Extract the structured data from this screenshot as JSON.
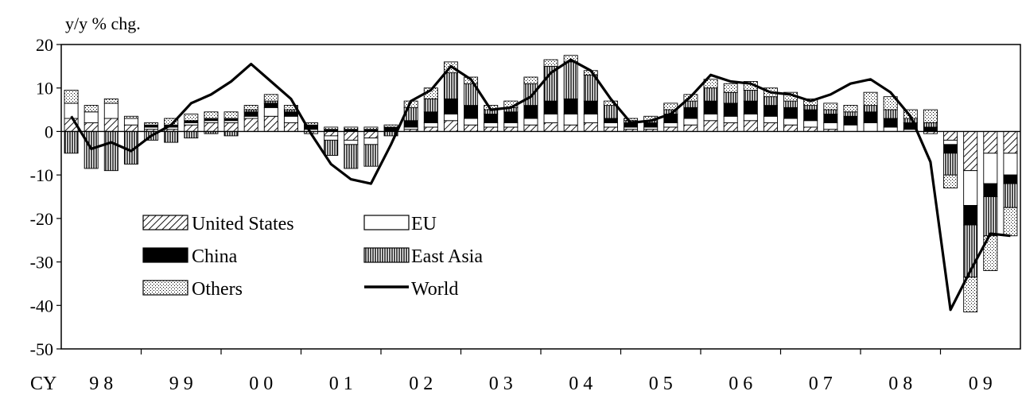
{
  "chart_data": {
    "type": "bar",
    "subtype": "stacked-bar-with-line",
    "ylabel": "y/y % chg.",
    "ylim": [
      -50,
      20
    ],
    "yticks": [
      20,
      10,
      0,
      -10,
      -20,
      -30,
      -40,
      -50
    ],
    "x_prefix": "CY",
    "year_labels": [
      "98",
      "99",
      "00",
      "01",
      "02",
      "03",
      "04",
      "05",
      "06",
      "07",
      "08",
      "09"
    ],
    "quarters_per_year": 4,
    "legend": [
      "United States",
      "EU",
      "China",
      "East Asia",
      "Others",
      "World"
    ],
    "series": [
      {
        "name": "United States",
        "values": [
          3,
          2,
          3,
          1.5,
          0.5,
          0.5,
          1.5,
          2,
          2,
          3,
          3.5,
          2,
          -0.5,
          -1,
          -2,
          -1.5,
          0,
          0.5,
          1,
          2.5,
          1.5,
          1,
          1,
          1.5,
          2,
          1.5,
          2,
          1,
          0.5,
          0.5,
          1,
          1.5,
          2.5,
          2,
          2.5,
          2,
          1.5,
          1,
          0.5,
          0,
          0,
          0,
          0,
          -0.5,
          -2,
          -9,
          -5,
          -5
        ]
      },
      {
        "name": "EU",
        "values": [
          3.5,
          2.5,
          3.5,
          1.5,
          0.5,
          0.5,
          0.5,
          0.5,
          0.5,
          0.5,
          2,
          1.5,
          0.5,
          -1,
          -1,
          -1.5,
          0,
          0.5,
          1,
          1.5,
          1.5,
          1,
          1,
          1.5,
          2,
          2.5,
          2,
          1,
          0.5,
          0.5,
          1,
          1.5,
          1.5,
          1.5,
          1.5,
          1.5,
          1.5,
          1.5,
          1.5,
          1.5,
          2,
          1,
          0.5,
          0,
          -1,
          -8,
          -7,
          -5
        ]
      },
      {
        "name": "China",
        "values": [
          0,
          0,
          0,
          0,
          0.5,
          0.5,
          0.5,
          0.5,
          0.5,
          1,
          1,
          1,
          1,
          0.5,
          0.5,
          0.5,
          1,
          1.5,
          2.5,
          3.5,
          3,
          2,
          2.5,
          3,
          3,
          3.5,
          3,
          1,
          1,
          1,
          2,
          2.5,
          3,
          3,
          3,
          2.5,
          2.5,
          2.5,
          2,
          2,
          2.5,
          2,
          1.5,
          1,
          -2,
          -4.5,
          -3,
          -2
        ]
      },
      {
        "name": "East Asia",
        "values": [
          -5,
          -8.5,
          -9,
          -7.5,
          -2,
          -2.5,
          -1.5,
          -0.5,
          -1,
          0.5,
          0.5,
          0.5,
          0,
          -3.5,
          -5.5,
          -5,
          -1,
          3,
          3,
          6,
          5,
          1,
          1,
          5,
          8,
          8.5,
          6,
          3,
          0.5,
          0.5,
          1,
          1.5,
          3,
          2.5,
          2.5,
          2,
          1.5,
          1,
          1,
          1,
          1.5,
          2,
          1,
          1,
          -5,
          -12,
          -9,
          -5.5
        ]
      },
      {
        "name": "Others",
        "values": [
          3,
          1.5,
          1,
          0.5,
          0.5,
          1.5,
          1.5,
          1.5,
          1.5,
          1,
          1.5,
          1,
          0.5,
          0.5,
          0.5,
          0.5,
          0.5,
          1.5,
          2.5,
          2.5,
          1.5,
          1,
          1.5,
          1.5,
          1.5,
          1.5,
          1,
          1,
          0.5,
          1,
          1.5,
          1.5,
          2,
          2,
          2,
          2,
          2,
          1.5,
          1.5,
          1.5,
          3,
          3,
          2,
          3,
          -3,
          -8,
          -8,
          -6.5
        ]
      },
      {
        "name": "World",
        "type": "line",
        "values": [
          3.5,
          -4,
          -2.5,
          -4.5,
          -1,
          1.5,
          6.5,
          8.5,
          11.5,
          15.5,
          11.5,
          7.5,
          -0.5,
          -7.5,
          -11,
          -12,
          -3,
          7,
          9.5,
          15,
          12,
          5,
          5.5,
          8,
          13.5,
          16.5,
          14,
          7.5,
          2,
          2.5,
          4,
          8,
          13,
          11.5,
          11,
          9,
          8.5,
          7,
          8.5,
          11,
          12,
          9,
          3.5,
          -7,
          -41,
          -32,
          -23.5,
          -24
        ]
      }
    ]
  }
}
